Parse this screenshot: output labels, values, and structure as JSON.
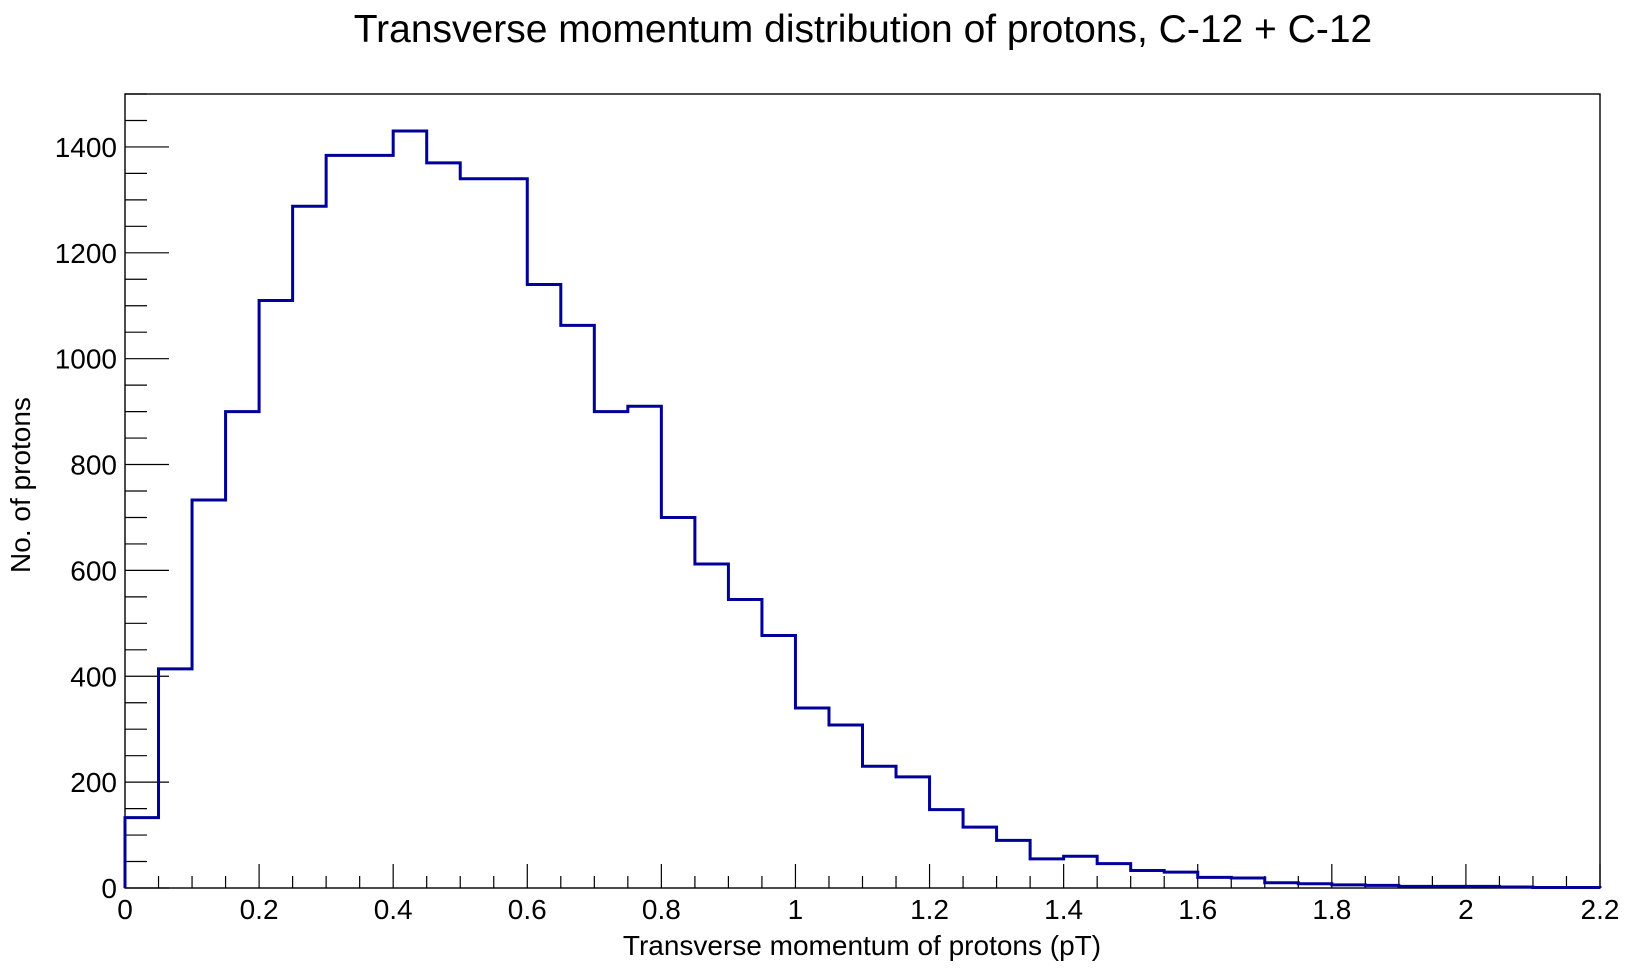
{
  "chart_data": {
    "type": "bar",
    "title": "Transverse momentum distribution of protons, C-12 + C-12",
    "xlabel": "Transverse momentum of protons (pT)",
    "ylabel": "No. of protons",
    "xlim": [
      0,
      2.2
    ],
    "ylim": [
      0,
      1500
    ],
    "bin_width": 0.05,
    "x_ticks": [
      0,
      0.2,
      0.4,
      0.6,
      0.8,
      1,
      1.2,
      1.4,
      1.6,
      1.8,
      2,
      2.2
    ],
    "x_tick_labels": [
      "0",
      "0.2",
      "0.4",
      "0.6",
      "0.8",
      "1",
      "1.2",
      "1.4",
      "1.6",
      "1.8",
      "2",
      "2.2"
    ],
    "y_ticks": [
      0,
      200,
      400,
      600,
      800,
      1000,
      1200,
      1400
    ],
    "y_tick_labels": [
      "0",
      "200",
      "400",
      "600",
      "800",
      "1000",
      "1200",
      "1400"
    ],
    "bin_edges": [
      0,
      0.05,
      0.1,
      0.15,
      0.2,
      0.25,
      0.3,
      0.35,
      0.4,
      0.45,
      0.5,
      0.55,
      0.6,
      0.65,
      0.7,
      0.75,
      0.8,
      0.85,
      0.9,
      0.95,
      1.0,
      1.05,
      1.1,
      1.15,
      1.2,
      1.25,
      1.3,
      1.35,
      1.4,
      1.45,
      1.5,
      1.55,
      1.6,
      1.65,
      1.7,
      1.75,
      1.8,
      1.85,
      1.9,
      1.95,
      2.0,
      2.05,
      2.1,
      2.15,
      2.2
    ],
    "values": [
      133,
      414,
      733,
      900,
      1110,
      1288,
      1384,
      1384,
      1430,
      1370,
      1340,
      1340,
      1140,
      1063,
      900,
      910,
      700,
      612,
      545,
      477,
      340,
      308,
      230,
      210,
      148,
      115,
      90,
      55,
      60,
      46,
      33,
      30,
      20,
      19,
      10,
      8,
      6,
      5,
      3,
      3,
      3,
      2,
      1,
      1
    ],
    "line_color": "#000099",
    "grid": false,
    "legend": "none"
  }
}
